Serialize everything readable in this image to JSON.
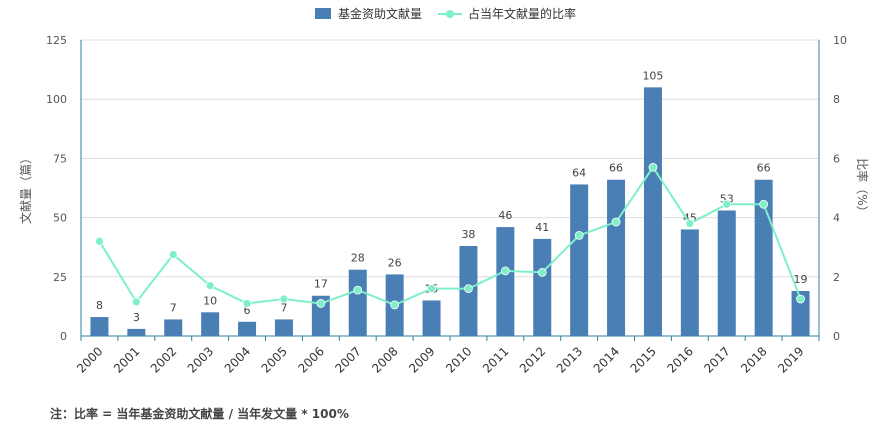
{
  "colors": {
    "bar": "#4a7fb5",
    "line": "#7ef0c8",
    "axis": "#2f7fa3",
    "grid": "#dddddd",
    "text": "#555555"
  },
  "chart_data": {
    "type": "bar",
    "categories": [
      "2000",
      "2001",
      "2002",
      "2003",
      "2004",
      "2005",
      "2006",
      "2007",
      "2008",
      "2009",
      "2010",
      "2011",
      "2012",
      "2013",
      "2014",
      "2015",
      "2016",
      "2017",
      "2018",
      "2019"
    ],
    "series": [
      {
        "name": "基金资助文献量",
        "type": "bar",
        "axis": "left",
        "values": [
          8,
          3,
          7,
          10,
          6,
          7,
          17,
          28,
          26,
          15,
          38,
          46,
          41,
          64,
          66,
          105,
          45,
          53,
          66,
          19
        ]
      },
      {
        "name": "占当年文献量的比率",
        "type": "line",
        "axis": "right",
        "values": [
          3.2,
          1.15,
          2.75,
          1.7,
          1.1,
          1.25,
          1.1,
          1.55,
          1.05,
          1.6,
          1.6,
          2.2,
          2.15,
          3.4,
          3.85,
          5.7,
          3.8,
          4.45,
          4.45,
          1.25
        ]
      }
    ],
    "ylabel": "文献量（篇）",
    "y2label": "比率（%）",
    "ylim": [
      0,
      125
    ],
    "yticks": [
      0,
      25,
      50,
      75,
      100,
      125
    ],
    "y2lim": [
      0,
      10
    ],
    "y2ticks": [
      0,
      2,
      4,
      6,
      8,
      10
    ],
    "legend_position": "top-center",
    "grid": true,
    "bar_labels": true
  },
  "footnote": "注：比率 = 当年基金资助文献量 / 当年发文量 * 100%"
}
